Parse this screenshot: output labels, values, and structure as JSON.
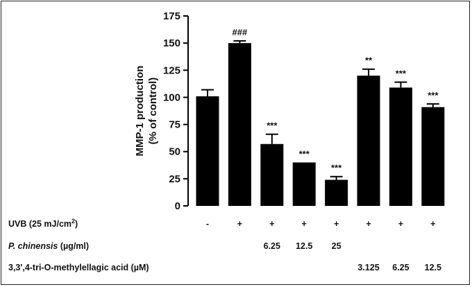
{
  "chart_data": {
    "type": "bar",
    "ylabel_lines": [
      "MMP-1 production",
      "(% of control)"
    ],
    "ylim": [
      0,
      175
    ],
    "yticks": [
      "0",
      "25",
      "50",
      "75",
      "100",
      "125",
      "150",
      "175"
    ],
    "bars": [
      {
        "value": 101,
        "error": 6,
        "sig": ""
      },
      {
        "value": 150,
        "error": 2,
        "sig": "###"
      },
      {
        "value": 57,
        "error": 9,
        "sig": "***"
      },
      {
        "value": 40,
        "error": 0,
        "sig": "***"
      },
      {
        "value": 24,
        "error": 3,
        "sig": "***"
      },
      {
        "value": 120,
        "error": 6,
        "sig": "**"
      },
      {
        "value": 109,
        "error": 5,
        "sig": "***"
      },
      {
        "value": 91,
        "error": 3,
        "sig": "***"
      }
    ],
    "bar_color": "#000000",
    "grid": false,
    "treatment_rows": [
      {
        "label": "UVB (25 mJ/cm",
        "label_sup": "2",
        "label_tail": ")",
        "cells": [
          "-",
          "+",
          "+",
          "+",
          "+",
          "+",
          "+",
          "+"
        ]
      },
      {
        "label": "P. chinensis",
        "label_italic": true,
        "label_tail": " (µg/ml)",
        "cells": [
          "",
          "",
          "6.25",
          "12.5",
          "25",
          "",
          "",
          ""
        ]
      },
      {
        "label": "3,3',4-tri-O-methylellagic acid (µM)",
        "cells": [
          "",
          "",
          "",
          "",
          "",
          "3.125",
          "6.25",
          "12.5"
        ]
      }
    ]
  }
}
